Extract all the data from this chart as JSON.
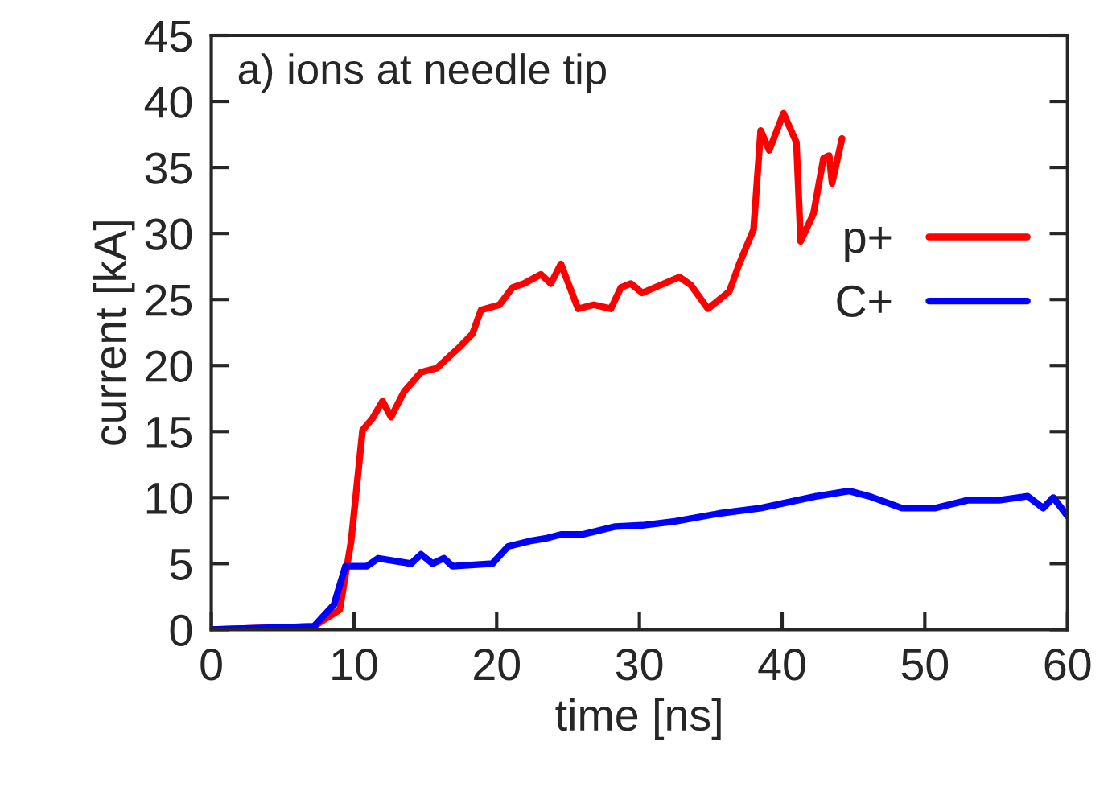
{
  "chart_data": {
    "type": "line",
    "xlabel": "time [ns]",
    "ylabel": "current [kA]",
    "annotations": [
      "a) ions at needle tip"
    ],
    "xlim": [
      0,
      60
    ],
    "ylim": [
      0,
      45
    ],
    "xticks": [
      0,
      10,
      20,
      30,
      40,
      50,
      60
    ],
    "yticks": [
      0,
      5,
      10,
      15,
      20,
      25,
      30,
      35,
      40,
      45
    ],
    "grid": false,
    "legend": "right",
    "marker": "none",
    "line_style": "solid",
    "series": [
      {
        "name": "p+",
        "color": "#ff0000",
        "x": [
          0,
          7.2,
          9.0,
          9.8,
          10.6,
          11.3,
          12.0,
          12.6,
          13.5,
          14.7,
          15.8,
          17.4,
          18.3,
          18.9,
          20.2,
          21.1,
          21.9,
          23.1,
          23.8,
          24.5,
          25.7,
          26.8,
          28.0,
          28.7,
          29.4,
          30.2,
          32.8,
          33.6,
          34.8,
          36.3,
          37.0,
          38.0,
          38.5,
          39.1,
          40.1,
          41.0,
          41.3,
          42.2,
          42.9,
          43.3,
          43.5,
          44.2
        ],
        "values": [
          0,
          0.25,
          1.5,
          6.7,
          15.1,
          16,
          17.3,
          16.1,
          18,
          19.5,
          19.8,
          21.4,
          22.4,
          24.2,
          24.6,
          25.9,
          26.2,
          26.9,
          26.2,
          27.7,
          24.3,
          24.6,
          24.3,
          25.9,
          26.2,
          25.5,
          26.7,
          26.1,
          24.3,
          25.6,
          27.7,
          30.3,
          37.8,
          36.3,
          39.1,
          36.9,
          29.4,
          31.5,
          35.7,
          35.9,
          33.8,
          37.2
        ]
      },
      {
        "name": "C+",
        "color": "#0000ff",
        "x": [
          0,
          7.2,
          8.6,
          9.4,
          10.9,
          11.7,
          14.0,
          14.7,
          15.5,
          16.3,
          16.9,
          19.7,
          20.8,
          22.3,
          23.4,
          24.5,
          26.0,
          28.3,
          30.2,
          32.5,
          35.6,
          38.5,
          42.4,
          44.7,
          46.1,
          48.4,
          50.7,
          53.0,
          55.2,
          57.2,
          58.3,
          59.0,
          60.0
        ],
        "values": [
          0,
          0.25,
          1.9,
          4.8,
          4.8,
          5.4,
          5.0,
          5.7,
          5.0,
          5.4,
          4.8,
          5.0,
          6.3,
          6.7,
          6.9,
          7.2,
          7.2,
          7.8,
          7.9,
          8.2,
          8.8,
          9.2,
          10.1,
          10.5,
          10.1,
          9.2,
          9.2,
          9.8,
          9.8,
          10.1,
          9.2,
          10.0,
          8.6
        ]
      }
    ]
  }
}
